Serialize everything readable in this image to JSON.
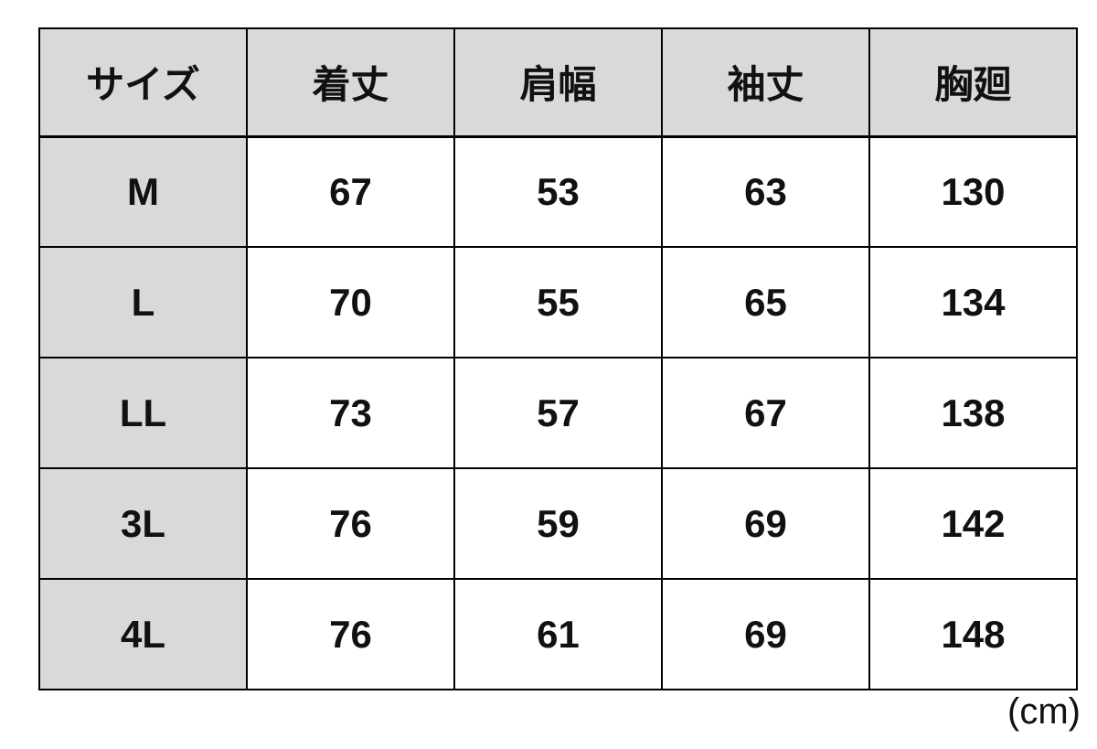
{
  "table": {
    "headers": [
      "サイズ",
      "着丈",
      "肩幅",
      "袖丈",
      "胸廻"
    ],
    "rows": [
      [
        "M",
        "67",
        "53",
        "63",
        "130"
      ],
      [
        "L",
        "70",
        "55",
        "65",
        "134"
      ],
      [
        "LL",
        "73",
        "57",
        "67",
        "138"
      ],
      [
        "3L",
        "76",
        "59",
        "69",
        "142"
      ],
      [
        "4L",
        "76",
        "61",
        "69",
        "148"
      ]
    ]
  },
  "unit_note": "(cm)",
  "colors": {
    "header_bg": "#d9d9d9",
    "body_bg": "#ffffff",
    "border": "#000000",
    "text": "#111111"
  },
  "chart_data": {
    "type": "table",
    "title": "",
    "columns": [
      "サイズ",
      "着丈",
      "肩幅",
      "袖丈",
      "胸廻"
    ],
    "rows": [
      [
        "M",
        67,
        53,
        63,
        130
      ],
      [
        "L",
        70,
        55,
        65,
        134
      ],
      [
        "LL",
        73,
        57,
        67,
        138
      ],
      [
        "3L",
        76,
        59,
        69,
        142
      ],
      [
        "4L",
        76,
        61,
        69,
        148
      ]
    ],
    "unit": "cm",
    "notes": "Garment size chart: size, body length, shoulder width, sleeve length, chest circumference in cm"
  }
}
